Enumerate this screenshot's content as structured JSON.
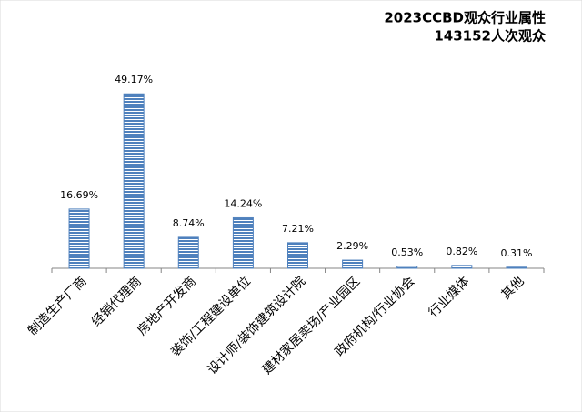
{
  "chart_data": {
    "type": "bar",
    "title": "2023CCBD观众行业属性",
    "subtitle": "143152人次观众",
    "categories": [
      "制造生产厂商",
      "经销代理商",
      "房地产开发商",
      "装饰/工程建设单位",
      "设计师/装饰建筑设计院",
      "建材家居卖场/产业园区",
      "政府机构/行业协会",
      "行业媒体",
      "其他"
    ],
    "values": [
      16.69,
      49.17,
      8.74,
      14.24,
      7.21,
      2.29,
      0.53,
      0.82,
      0.31
    ],
    "value_labels": [
      "16.69%",
      "49.17%",
      "8.74%",
      "14.24%",
      "7.21%",
      "2.29%",
      "0.53%",
      "0.82%",
      "0.31%"
    ],
    "color": "#4f81bd"
  }
}
